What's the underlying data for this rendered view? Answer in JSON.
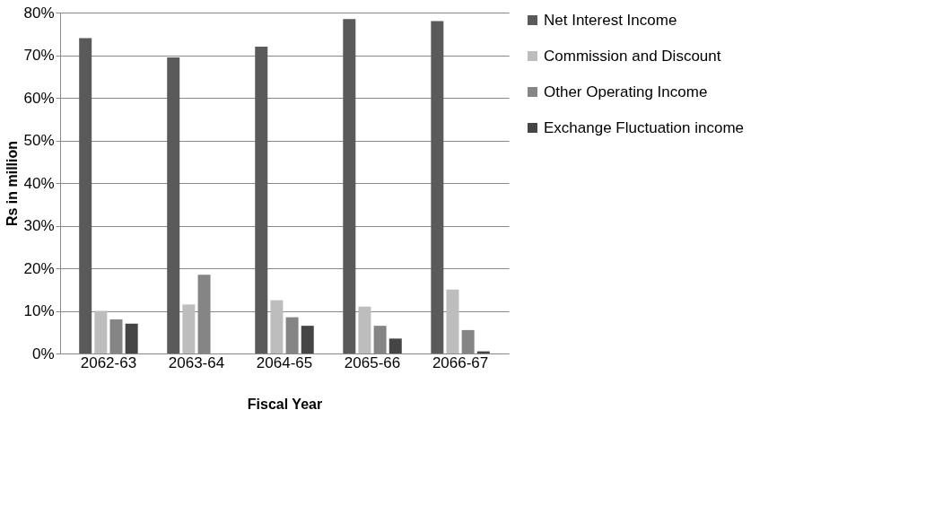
{
  "chart_data": {
    "type": "bar",
    "xlabel": "Fiscal Year",
    "ylabel": "Rs in million",
    "categories": [
      "2062-63",
      "2063-64",
      "2064-65",
      "2065-66",
      "2066-67"
    ],
    "series": [
      {
        "name": "Net Interest Income",
        "color": "#5a5a5a",
        "values": [
          74,
          69.5,
          72,
          78.5,
          78
        ]
      },
      {
        "name": "Commission and Discount",
        "color": "#bdbdbd",
        "values": [
          10,
          11.5,
          12.5,
          11,
          15
        ]
      },
      {
        "name": "Other Operating Income",
        "color": "#858585",
        "values": [
          8,
          18.5,
          8.5,
          6.5,
          5.5
        ]
      },
      {
        "name": "Exchange Fluctuation income",
        "color": "#454545",
        "values": [
          7,
          0,
          6.5,
          3.5,
          0.5
        ]
      }
    ],
    "ylim": [
      0,
      80
    ],
    "yticks": [
      {
        "value": 0,
        "label": "0%"
      },
      {
        "value": 10,
        "label": "10%"
      },
      {
        "value": 20,
        "label": "20%"
      },
      {
        "value": 30,
        "label": "30%"
      },
      {
        "value": 40,
        "label": "40%"
      },
      {
        "value": 50,
        "label": "50%"
      },
      {
        "value": 60,
        "label": "60%"
      },
      {
        "value": 70,
        "label": "70%"
      },
      {
        "value": 80,
        "label": "80%"
      }
    ],
    "grid": "y",
    "legend": "right"
  }
}
